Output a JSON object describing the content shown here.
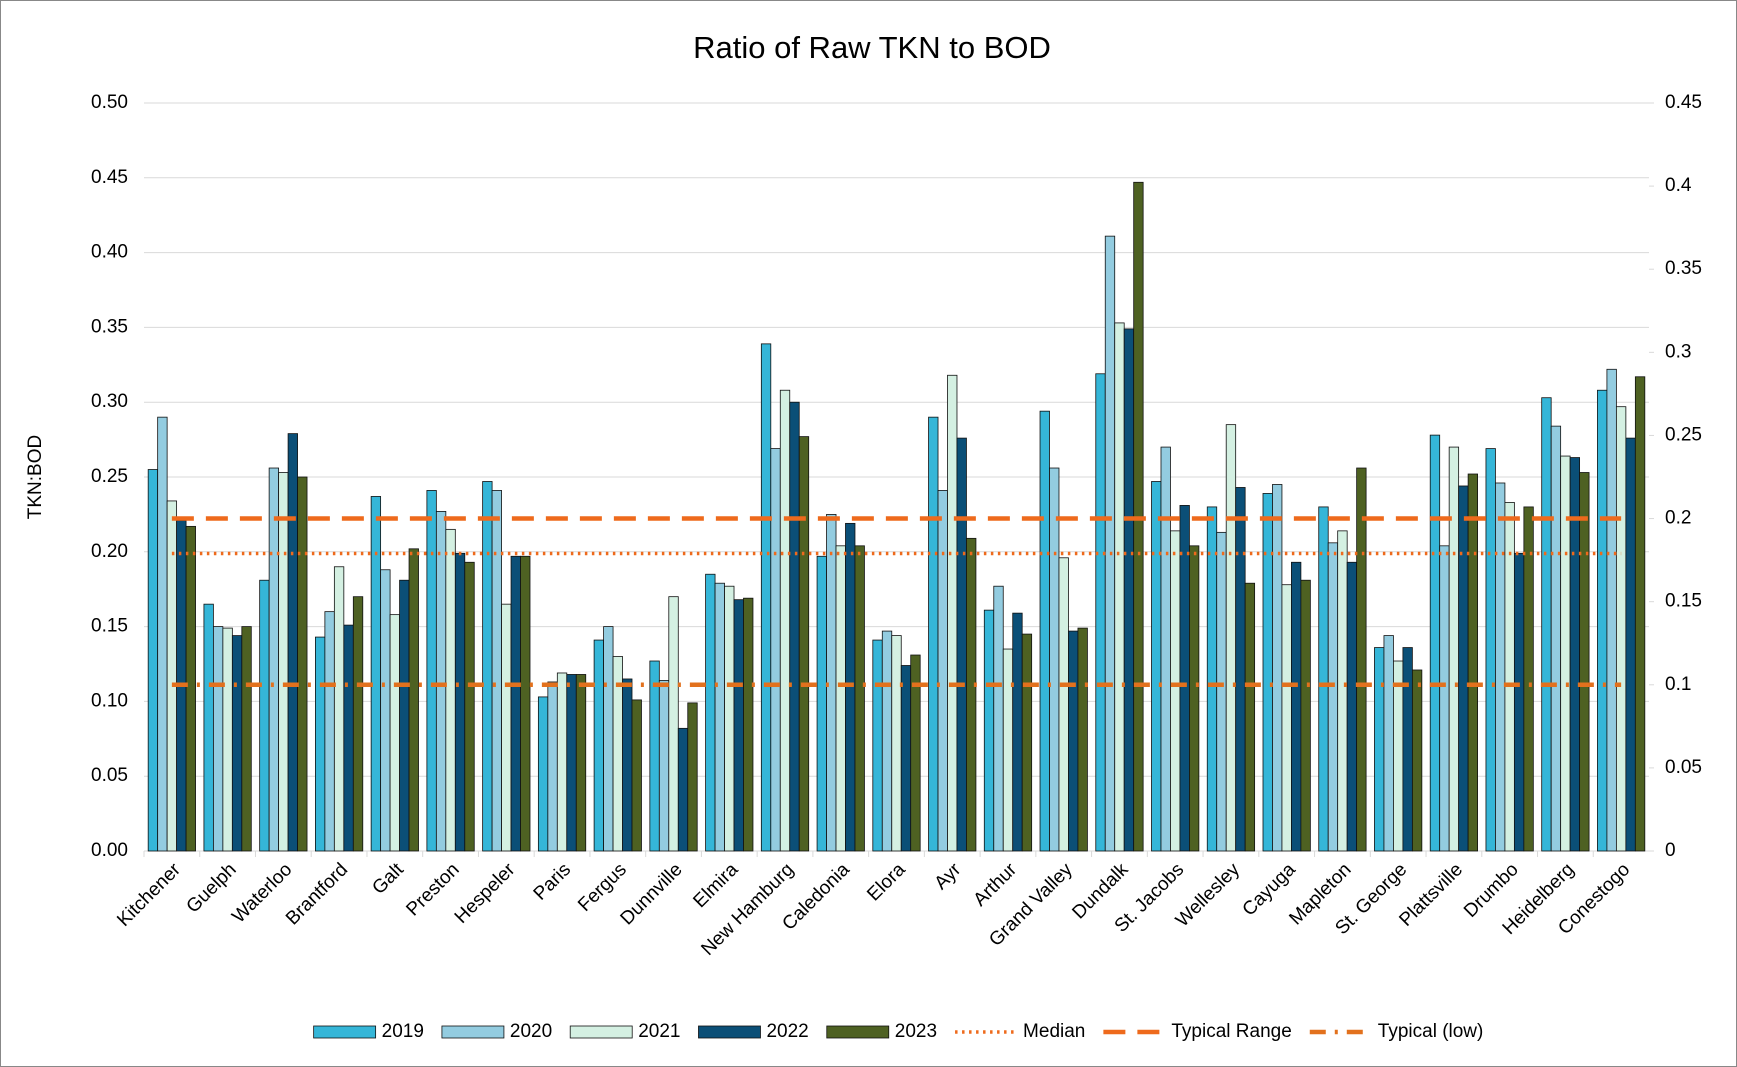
{
  "chart_data": {
    "type": "bar",
    "title": "Ratio of Raw TKN to BOD",
    "y_label": "TKN:BOD",
    "categories": [
      "Kitchener",
      "Guelph",
      "Waterloo",
      "Brantford",
      "Galt",
      "Preston",
      "Hespeler",
      "Paris",
      "Fergus",
      "Dunnville",
      "Elmira",
      "New Hamburg",
      "Caledonia",
      "Elora",
      "Ayr",
      "Arthur",
      "Grand Valley",
      "Dundalk",
      "St. Jacobs",
      "Wellesley",
      "Cayuga",
      "Mapleton",
      "St. George",
      "Plattsville",
      "Drumbo",
      "Heidelberg",
      "Conestogo"
    ],
    "series": [
      {
        "name": "2019",
        "color": "#35b6d8",
        "values": [
          0.255,
          0.165,
          0.181,
          0.143,
          0.237,
          0.241,
          0.247,
          0.103,
          0.141,
          0.127,
          0.185,
          0.339,
          0.197,
          0.141,
          0.29,
          0.161,
          0.294,
          0.319,
          0.247,
          0.23,
          0.239,
          0.23,
          0.136,
          0.278,
          0.269,
          0.303,
          0.308
        ]
      },
      {
        "name": "2020",
        "color": "#93cce0",
        "values": [
          0.29,
          0.15,
          0.256,
          0.16,
          0.188,
          0.227,
          0.241,
          0.113,
          0.15,
          0.114,
          0.179,
          0.269,
          0.225,
          0.147,
          0.241,
          0.177,
          0.256,
          0.411,
          0.27,
          0.213,
          0.245,
          0.206,
          0.144,
          0.204,
          0.246,
          0.284,
          0.322
        ]
      },
      {
        "name": "2021",
        "color": "#d4f0e2",
        "values": [
          0.234,
          0.149,
          0.253,
          0.19,
          0.158,
          0.215,
          0.165,
          0.119,
          0.13,
          0.17,
          0.177,
          0.308,
          0.204,
          0.144,
          0.318,
          0.135,
          0.196,
          0.353,
          0.214,
          0.285,
          0.178,
          0.214,
          0.127,
          0.27,
          0.233,
          0.264,
          0.297
        ]
      },
      {
        "name": "2022",
        "color": "#0b4f77",
        "values": [
          0.221,
          0.144,
          0.279,
          0.151,
          0.181,
          0.199,
          0.197,
          0.118,
          0.115,
          0.082,
          0.168,
          0.3,
          0.219,
          0.124,
          0.276,
          0.159,
          0.147,
          0.349,
          0.231,
          0.243,
          0.193,
          0.193,
          0.136,
          0.244,
          0.199,
          0.263,
          0.276
        ]
      },
      {
        "name": "2023",
        "color": "#4e6122",
        "values": [
          0.217,
          0.15,
          0.25,
          0.17,
          0.202,
          0.193,
          0.197,
          0.118,
          0.101,
          0.099,
          0.169,
          0.277,
          0.204,
          0.131,
          0.209,
          0.145,
          0.149,
          0.447,
          0.204,
          0.179,
          0.181,
          0.256,
          0.121,
          0.252,
          0.23,
          0.253,
          0.317
        ]
      },
      {
        "name": "Median",
        "type": "line",
        "axis": "y2",
        "dash": "dot",
        "color": "#ee6a1c",
        "values": [
          0.179,
          0.179,
          0.179,
          0.179,
          0.179,
          0.179,
          0.179,
          0.179,
          0.179,
          0.179,
          0.179,
          0.179,
          0.179,
          0.179,
          0.179,
          0.179,
          0.179,
          0.179,
          0.179,
          0.179,
          0.179,
          0.179,
          0.179,
          0.179,
          0.179,
          0.179,
          0.179
        ]
      },
      {
        "name": "Typical Range",
        "type": "line",
        "axis": "y2",
        "dash": "dash",
        "color": "#ee6a1c",
        "values": [
          0.2,
          0.2,
          0.2,
          0.2,
          0.2,
          0.2,
          0.2,
          0.2,
          0.2,
          0.2,
          0.2,
          0.2,
          0.2,
          0.2,
          0.2,
          0.2,
          0.2,
          0.2,
          0.2,
          0.2,
          0.2,
          0.2,
          0.2,
          0.2,
          0.2,
          0.2,
          0.2
        ]
      },
      {
        "name": "Typical (low)",
        "type": "line",
        "axis": "y2",
        "dash": "dashdot",
        "color": "#e2711d",
        "values": [
          0.1,
          0.1,
          0.1,
          0.1,
          0.1,
          0.1,
          0.1,
          0.1,
          0.1,
          0.1,
          0.1,
          0.1,
          0.1,
          0.1,
          0.1,
          0.1,
          0.1,
          0.1,
          0.1,
          0.1,
          0.1,
          0.1,
          0.1,
          0.1,
          0.1,
          0.1,
          0.1
        ]
      }
    ],
    "ylim": [
      0,
      0.5
    ],
    "yticks": [
      {
        "value": 0,
        "label": "0.00"
      },
      {
        "value": 0.05,
        "label": "0.05"
      },
      {
        "value": 0.1,
        "label": "0.10"
      },
      {
        "value": 0.15,
        "label": "0.15"
      },
      {
        "value": 0.2,
        "label": "0.20"
      },
      {
        "value": 0.25,
        "label": "0.25"
      },
      {
        "value": 0.3,
        "label": "0.30"
      },
      {
        "value": 0.35,
        "label": "0.35"
      },
      {
        "value": 0.4,
        "label": "0.40"
      },
      {
        "value": 0.45,
        "label": "0.45"
      },
      {
        "value": 0.5,
        "label": "0.50"
      }
    ],
    "y2lim": [
      0,
      0.45
    ],
    "y2ticks": [
      0,
      0.05,
      0.1,
      0.15,
      0.2,
      0.25,
      0.3,
      0.35,
      0.4,
      0.45
    ],
    "grid": true,
    "legend": "bottom"
  }
}
